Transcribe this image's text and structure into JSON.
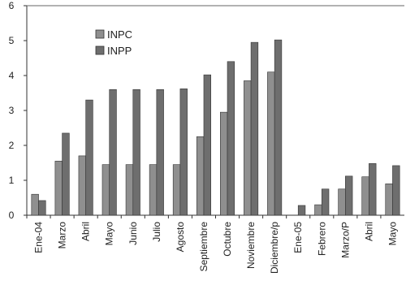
{
  "chart_data": {
    "type": "bar",
    "categories": [
      "Ene-04",
      "Marzo",
      "Abril",
      "Mayo",
      "Junio",
      "Julio",
      "Agosto",
      "Septiembre",
      "Octubre",
      "Noviembre",
      "Diciembre/p",
      "Ene-05",
      "Febrero",
      "Marzo/P",
      "Abril",
      "Mayo"
    ],
    "series": [
      {
        "name": "INPC",
        "color": "#8f8f8f",
        "values": [
          0.6,
          1.55,
          1.7,
          1.45,
          1.45,
          1.45,
          1.45,
          2.25,
          2.95,
          3.85,
          4.1,
          0.0,
          0.3,
          0.75,
          1.1,
          0.9
        ]
      },
      {
        "name": "INPP",
        "color": "#6e6e6e",
        "values": [
          0.42,
          2.35,
          3.3,
          3.6,
          3.6,
          3.6,
          3.62,
          4.02,
          4.4,
          4.95,
          5.02,
          0.28,
          0.75,
          1.12,
          1.48,
          1.42
        ]
      }
    ],
    "yticks": [
      0,
      1,
      2,
      3,
      4,
      5,
      6
    ],
    "ylim": [
      0,
      6
    ],
    "legend_position": "top-left",
    "grid": false
  }
}
